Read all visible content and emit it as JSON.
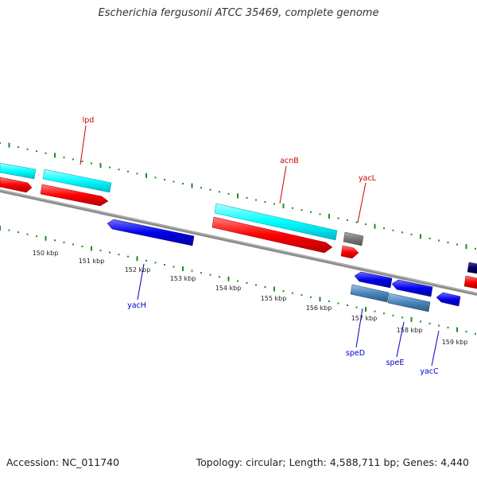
{
  "title": "Escherichia fergusonii ATCC 35469, complete genome",
  "footer": {
    "accession": "Accession: NC_011740",
    "summary": "Topology: circular; Length: 4,588,711 bp; Genes: 4,440"
  },
  "colors": {
    "backbone": "#8c8c8c",
    "cds": "#00ffff",
    "gene_forward": "#ff0000",
    "gene_reverse": "#0000ee",
    "cds_reverse": "#4a84b8",
    "other": "#777777",
    "tick": "#1f8c1f",
    "label_forward": "#cc0000",
    "label_reverse": "#0000cc"
  },
  "scale": {
    "labels": [
      "150 kbp",
      "151 kbp",
      "152 kbp",
      "153 kbp",
      "154 kbp",
      "155 kbp",
      "156 kbp",
      "157 kbp",
      "158 kbp",
      "159 kbp"
    ]
  },
  "gene_labels": {
    "lpd": "lpd",
    "acnB": "acnB",
    "yacL": "yacL",
    "yacH": "yacH",
    "speD": "speD",
    "speE": "speE",
    "yacC": "yacC"
  }
}
